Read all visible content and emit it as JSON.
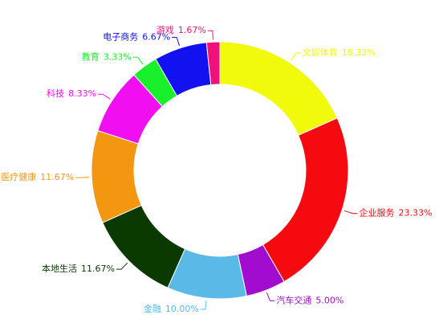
{
  "chart_data": {
    "type": "donut",
    "categories": [
      "文娱体育",
      "企业服务",
      "汽车交通",
      "金融",
      "本地生活",
      "医疗健康",
      "科技",
      "教育",
      "电子商务",
      "游戏"
    ],
    "values": [
      18.33,
      23.33,
      5.0,
      10.0,
      11.67,
      11.67,
      8.33,
      3.33,
      6.67,
      1.67
    ],
    "value_labels": [
      "18.33%",
      "23.33%",
      "5.00%",
      "10.00%",
      "11.67%",
      "11.67%",
      "8.33%",
      "3.33%",
      "6.67%",
      "1.67%"
    ],
    "colors": [
      "#f0fa0a",
      "#f50a0f",
      "#a10ccf",
      "#5bb9e8",
      "#0a3a00",
      "#f39711",
      "#f00ff0",
      "#17f02a",
      "#1212f0",
      "#f0127a"
    ]
  }
}
